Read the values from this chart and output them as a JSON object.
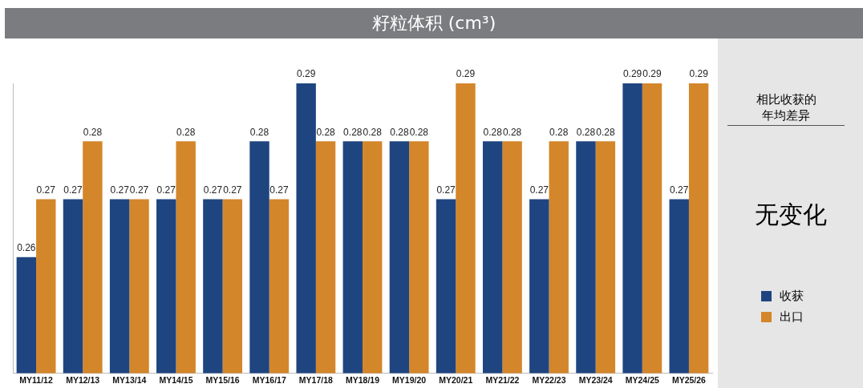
{
  "chart_data": {
    "type": "bar",
    "title": "籽粒体积 (cm³)",
    "categories": [
      "MY11/12",
      "MY12/13",
      "MY13/14",
      "MY14/15",
      "MY15/16",
      "MY16/17",
      "MY17/18",
      "MY18/19",
      "MY19/20",
      "MY20/21",
      "MY21/22",
      "MY22/23",
      "MY23/24",
      "MY24/25",
      "MY25/26"
    ],
    "series": [
      {
        "name": "收获",
        "color": "#1f4580",
        "values": [
          0.26,
          0.27,
          0.27,
          0.27,
          0.27,
          0.28,
          0.29,
          0.28,
          0.28,
          0.27,
          0.28,
          0.27,
          0.28,
          0.29,
          0.27
        ]
      },
      {
        "name": "出口",
        "color": "#d4862a",
        "values": [
          0.27,
          0.28,
          0.27,
          0.28,
          0.27,
          0.27,
          0.28,
          0.28,
          0.28,
          0.29,
          0.28,
          0.28,
          0.28,
          0.29,
          0.29
        ]
      }
    ],
    "ylim": [
      0.24,
      0.29
    ],
    "tick_labels": "x",
    "data_labels": true,
    "grid": false,
    "legend": "right",
    "annotations": [
      "相比收获的年均差异",
      "无变化"
    ]
  }
}
